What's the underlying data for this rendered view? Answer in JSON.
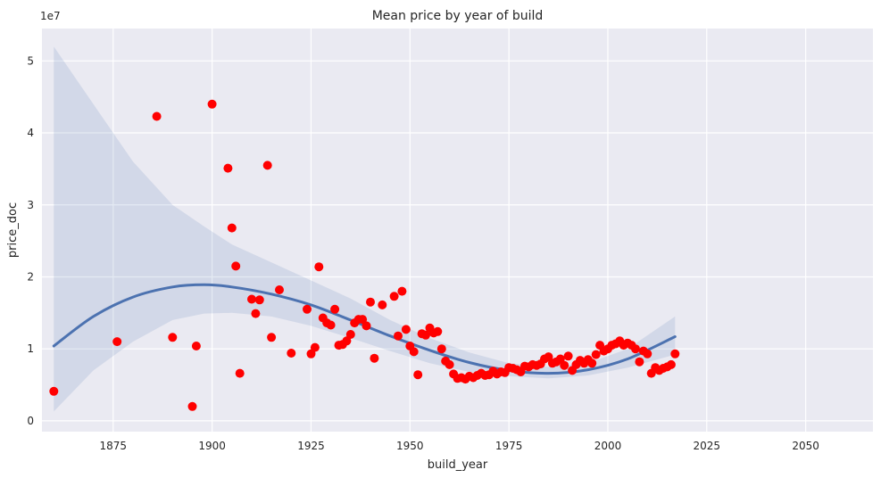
{
  "chart_data": {
    "type": "scatter",
    "title": "Mean price by year of build",
    "xlabel": "build_year",
    "ylabel": "price_doc",
    "y_offset_label": "1e7",
    "xlim": [
      1857,
      2067
    ],
    "ylim": [
      -0.15,
      5.45
    ],
    "x_ticks": [
      1875,
      1900,
      1925,
      1950,
      1975,
      2000,
      2025,
      2050
    ],
    "y_ticks": [
      0,
      1,
      2,
      3,
      4,
      5
    ],
    "grid": true,
    "style": "seaborn-darkgrid",
    "colors": {
      "background": "#eaeaf2",
      "grid": "#ffffff",
      "points": "#ff0000",
      "fit_line": "#4c72b0",
      "confidence_band": "#4c72b0"
    },
    "points": [
      [
        1860,
        0.41
      ],
      [
        1876,
        1.1
      ],
      [
        1886,
        4.23
      ],
      [
        1890,
        1.16
      ],
      [
        1895,
        0.2
      ],
      [
        1896,
        1.04
      ],
      [
        1900,
        4.4
      ],
      [
        1904,
        3.51
      ],
      [
        1905,
        2.68
      ],
      [
        1906,
        2.15
      ],
      [
        1907,
        0.66
      ],
      [
        1910,
        1.69
      ],
      [
        1911,
        1.49
      ],
      [
        1912,
        1.68
      ],
      [
        1914,
        3.55
      ],
      [
        1915,
        1.16
      ],
      [
        1917,
        1.82
      ],
      [
        1920,
        0.94
      ],
      [
        1924,
        1.55
      ],
      [
        1925,
        0.93
      ],
      [
        1926,
        1.02
      ],
      [
        1927,
        2.14
      ],
      [
        1928,
        1.43
      ],
      [
        1929,
        1.36
      ],
      [
        1930,
        1.33
      ],
      [
        1931,
        1.55
      ],
      [
        1932,
        1.05
      ],
      [
        1933,
        1.06
      ],
      [
        1934,
        1.11
      ],
      [
        1935,
        1.2
      ],
      [
        1936,
        1.36
      ],
      [
        1937,
        1.41
      ],
      [
        1938,
        1.41
      ],
      [
        1939,
        1.32
      ],
      [
        1940,
        1.65
      ],
      [
        1941,
        0.87
      ],
      [
        1943,
        1.61
      ],
      [
        1946,
        1.73
      ],
      [
        1947,
        1.18
      ],
      [
        1948,
        1.8
      ],
      [
        1949,
        1.27
      ],
      [
        1950,
        1.04
      ],
      [
        1951,
        0.96
      ],
      [
        1952,
        0.64
      ],
      [
        1953,
        1.21
      ],
      [
        1954,
        1.19
      ],
      [
        1955,
        1.29
      ],
      [
        1956,
        1.22
      ],
      [
        1957,
        1.24
      ],
      [
        1958,
        1.0
      ],
      [
        1959,
        0.83
      ],
      [
        1960,
        0.78
      ],
      [
        1961,
        0.65
      ],
      [
        1962,
        0.59
      ],
      [
        1963,
        0.6
      ],
      [
        1964,
        0.58
      ],
      [
        1965,
        0.62
      ],
      [
        1966,
        0.6
      ],
      [
        1967,
        0.63
      ],
      [
        1968,
        0.66
      ],
      [
        1969,
        0.63
      ],
      [
        1970,
        0.64
      ],
      [
        1971,
        0.69
      ],
      [
        1972,
        0.65
      ],
      [
        1973,
        0.68
      ],
      [
        1974,
        0.67
      ],
      [
        1975,
        0.74
      ],
      [
        1976,
        0.73
      ],
      [
        1977,
        0.71
      ],
      [
        1978,
        0.68
      ],
      [
        1979,
        0.76
      ],
      [
        1980,
        0.75
      ],
      [
        1981,
        0.78
      ],
      [
        1982,
        0.77
      ],
      [
        1983,
        0.79
      ],
      [
        1984,
        0.86
      ],
      [
        1985,
        0.89
      ],
      [
        1986,
        0.8
      ],
      [
        1987,
        0.82
      ],
      [
        1988,
        0.86
      ],
      [
        1989,
        0.77
      ],
      [
        1990,
        0.9
      ],
      [
        1991,
        0.7
      ],
      [
        1992,
        0.78
      ],
      [
        1993,
        0.84
      ],
      [
        1994,
        0.8
      ],
      [
        1995,
        0.85
      ],
      [
        1996,
        0.8
      ],
      [
        1997,
        0.92
      ],
      [
        1998,
        1.05
      ],
      [
        1999,
        0.97
      ],
      [
        2000,
        1.0
      ],
      [
        2001,
        1.05
      ],
      [
        2002,
        1.07
      ],
      [
        2003,
        1.11
      ],
      [
        2004,
        1.05
      ],
      [
        2005,
        1.08
      ],
      [
        2006,
        1.05
      ],
      [
        2007,
        1.0
      ],
      [
        2008,
        0.82
      ],
      [
        2009,
        0.97
      ],
      [
        2010,
        0.93
      ],
      [
        2011,
        0.66
      ],
      [
        2012,
        0.74
      ],
      [
        2013,
        0.7
      ],
      [
        2014,
        0.73
      ],
      [
        2015,
        0.75
      ],
      [
        2016,
        0.78
      ],
      [
        2017,
        0.93
      ]
    ],
    "fit_line": {
      "x": [
        1860,
        1870,
        1880,
        1890,
        1898,
        1905,
        1915,
        1925,
        1935,
        1945,
        1955,
        1965,
        1975,
        1985,
        1995,
        2005,
        2017
      ],
      "y": [
        1.04,
        1.45,
        1.72,
        1.86,
        1.89,
        1.86,
        1.76,
        1.61,
        1.4,
        1.18,
        0.98,
        0.81,
        0.7,
        0.66,
        0.71,
        0.86,
        1.17
      ]
    },
    "confidence_band": {
      "x": [
        1860,
        1870,
        1880,
        1890,
        1898,
        1905,
        1915,
        1925,
        1935,
        1945,
        1955,
        1965,
        1975,
        1985,
        1995,
        2005,
        2017
      ],
      "upper": [
        5.2,
        4.4,
        3.6,
        3.0,
        2.7,
        2.45,
        2.2,
        1.95,
        1.7,
        1.4,
        1.15,
        0.95,
        0.8,
        0.75,
        0.8,
        1.0,
        1.45
      ],
      "lower": [
        0.13,
        0.7,
        1.1,
        1.4,
        1.49,
        1.5,
        1.45,
        1.32,
        1.15,
        0.97,
        0.8,
        0.68,
        0.62,
        0.59,
        0.63,
        0.74,
        0.92
      ]
    }
  }
}
